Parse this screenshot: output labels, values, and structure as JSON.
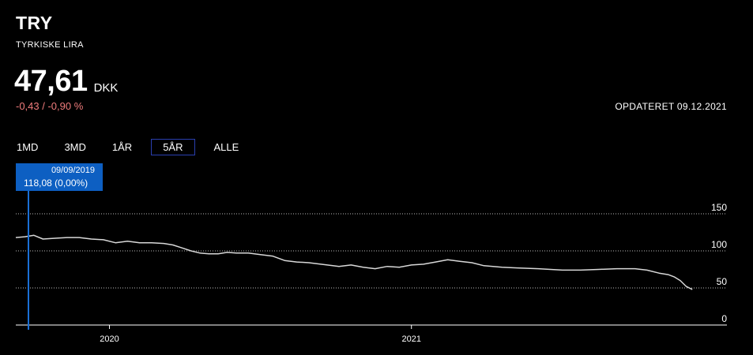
{
  "header": {
    "code": "TRY",
    "name": "TYRKISKE LIRA",
    "price": "47,61",
    "currency": "DKK",
    "change": "-0,43 / -0,90 %",
    "updated": "OPDATERET 09.12.2021"
  },
  "ranges": [
    {
      "label": "1MD",
      "active": false
    },
    {
      "label": "3MD",
      "active": false
    },
    {
      "label": "1ÅR",
      "active": false
    },
    {
      "label": "5ÅR",
      "active": true
    },
    {
      "label": "ALLE",
      "active": false
    }
  ],
  "tooltip": {
    "date": "09/09/2019",
    "value": "118,08 (0,00%)"
  },
  "colors": {
    "background": "#000000",
    "line": "#d8d8d8",
    "crosshair": "#1a6fd6",
    "tooltip": "#0d5fc2",
    "negative": "#f07c7c",
    "active_border": "#2a3fb0"
  },
  "chart_data": {
    "type": "line",
    "x_tick_labels": [
      "2020",
      "2021"
    ],
    "x_tick_values": [
      2020.0,
      2021.0
    ],
    "y_ticks": [
      0,
      50,
      100,
      150
    ],
    "y_tick_labels": [
      "0",
      "50",
      "100",
      "150"
    ],
    "xlim": [
      2019.69,
      2021.94
    ],
    "ylim": [
      0,
      150
    ],
    "grid": true,
    "series": [
      {
        "x": [
          2019.69,
          2019.72,
          2019.75,
          2019.78,
          2019.82,
          2019.86,
          2019.9,
          2019.94,
          2019.98,
          2020.02,
          2020.06,
          2020.1,
          2020.14,
          2020.18,
          2020.21,
          2020.24,
          2020.27,
          2020.3,
          2020.33,
          2020.36,
          2020.39,
          2020.42,
          2020.46,
          2020.5,
          2020.54,
          2020.58,
          2020.62,
          2020.66,
          2020.7,
          2020.74,
          2020.76,
          2020.8,
          2020.84,
          2020.88,
          2020.92,
          2020.96,
          2021.0,
          2021.04,
          2021.08,
          2021.12,
          2021.16,
          2021.2,
          2021.24,
          2021.3,
          2021.35,
          2021.42,
          2021.5,
          2021.56,
          2021.62,
          2021.68,
          2021.74,
          2021.78,
          2021.82,
          2021.85,
          2021.87,
          2021.89,
          2021.91,
          2021.93
        ],
        "y": [
          118,
          119,
          121,
          116,
          117,
          118,
          118,
          116,
          115,
          111,
          113,
          111,
          111,
          110,
          108,
          104,
          100,
          97,
          96,
          96,
          98,
          97,
          97,
          95,
          93,
          87,
          85,
          84,
          82,
          80,
          79,
          81,
          78,
          76,
          79,
          78,
          81,
          82,
          85,
          88,
          86,
          84,
          80,
          78,
          77,
          76,
          74,
          74,
          75,
          76,
          76,
          74,
          70,
          68,
          65,
          60,
          52,
          48
        ]
      }
    ]
  }
}
